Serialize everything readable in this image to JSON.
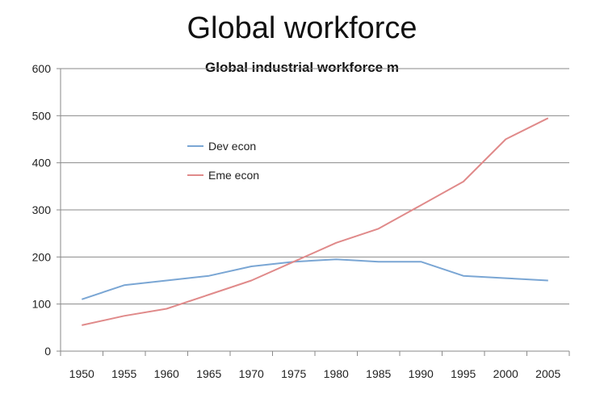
{
  "chart_data": {
    "type": "line",
    "title": "Global workforce",
    "subtitle": "Global industrial workforce m",
    "x": [
      "1950",
      "1955",
      "1960",
      "1965",
      "1970",
      "1975",
      "1980",
      "1985",
      "1990",
      "1995",
      "2000",
      "2005"
    ],
    "series": [
      {
        "name": "Dev econ",
        "color": "#7aa6d4",
        "values": [
          110,
          140,
          150,
          160,
          180,
          190,
          195,
          190,
          190,
          160,
          155,
          150
        ]
      },
      {
        "name": "Eme econ",
        "color": "#e08a8a",
        "values": [
          55,
          75,
          90,
          120,
          150,
          190,
          230,
          260,
          310,
          360,
          450,
          495
        ]
      }
    ],
    "ylim": [
      0,
      600
    ],
    "yticks": [
      0,
      100,
      200,
      300,
      400,
      500,
      600
    ],
    "grid": true,
    "legend": "upper-left inside plot"
  }
}
